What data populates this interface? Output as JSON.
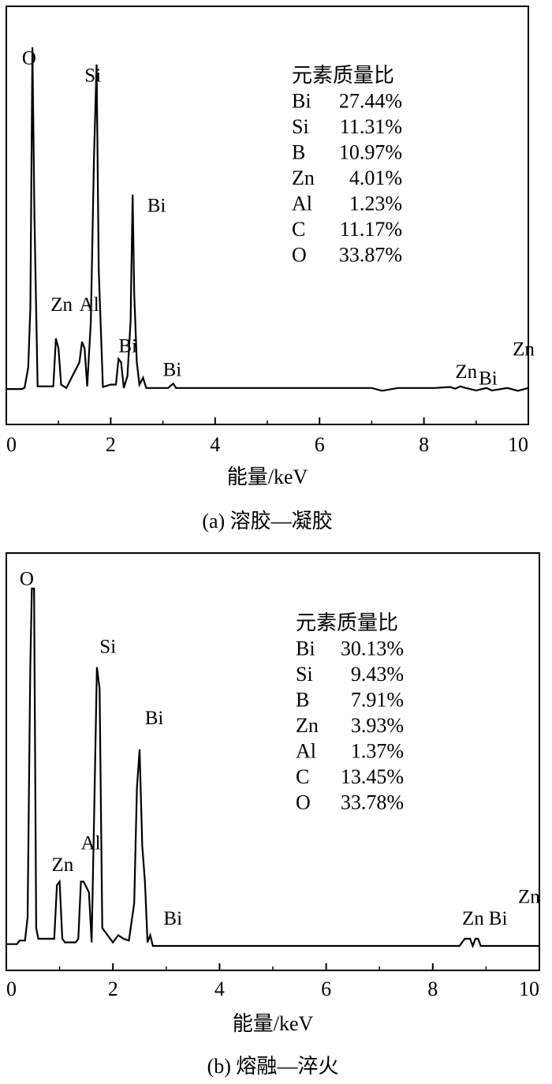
{
  "chart_data": [
    {
      "type": "line",
      "title": "",
      "caption": "(a)  溶胶—凝胶",
      "xlabel": "能量/keV",
      "ylabel": "",
      "xlim": [
        0,
        10
      ],
      "xticks": [
        "0",
        "2",
        "4",
        "6",
        "8",
        "10"
      ],
      "grid": false,
      "series": [
        {
          "x": [
            0,
            0.3,
            0.35,
            0.42,
            0.46,
            0.5,
            0.54,
            0.6,
            0.9,
            0.95,
            1.0,
            1.05,
            1.15,
            1.4,
            1.45,
            1.5,
            1.55,
            1.62,
            1.68,
            1.73,
            1.77,
            1.85,
            2.0,
            2.1,
            2.15,
            2.2,
            2.25,
            2.32,
            2.38,
            2.42,
            2.45,
            2.5,
            2.55,
            2.62,
            2.68,
            2.72,
            2.8,
            3.1,
            3.15,
            3.2,
            3.25,
            3.3,
            4.0,
            7.0,
            7.2,
            7.5,
            8.2,
            8.5,
            8.6,
            8.7,
            8.8,
            9.0,
            9.2,
            9.3,
            9.6,
            9.8,
            10.0
          ],
          "y": [
            0.2,
            0.2,
            0.6,
            6.5,
            24,
            100,
            50,
            1,
            1,
            15,
            12,
            1.5,
            0.5,
            8,
            14,
            12,
            1,
            20,
            68,
            95,
            35,
            0.8,
            1.5,
            1.5,
            9,
            8,
            0.5,
            4,
            20,
            57,
            28,
            8,
            1.5,
            3.5,
            0.5,
            0.5,
            0.5,
            0.5,
            1.2,
            1.8,
            0.5,
            0.5,
            0.5,
            0.5,
            -0.3,
            0.5,
            0.5,
            0.8,
            0.3,
            1.0,
            0.5,
            -0.2,
            0.5,
            -0.2,
            0.5,
            -0.3,
            0.5
          ]
        }
      ],
      "peak_labels": [
        {
          "text": "O",
          "x": 0.3,
          "y": 95
        },
        {
          "text": "Si",
          "x": 1.5,
          "y": 90
        },
        {
          "text": "Bi",
          "x": 2.7,
          "y": 52
        },
        {
          "text": "Zn",
          "x": 0.85,
          "y": 23
        },
        {
          "text": "Al",
          "x": 1.4,
          "y": 23
        },
        {
          "text": "Bi",
          "x": 2.15,
          "y": 11
        },
        {
          "text": "Bi",
          "x": 3.0,
          "y": 4
        },
        {
          "text": "Zn",
          "x": 8.6,
          "y": 3.5
        },
        {
          "text": "Bi",
          "x": 9.05,
          "y": 1.5
        },
        {
          "text": "Zn",
          "x": 9.7,
          "y": 10
        }
      ],
      "composition": {
        "heading": "元素质量比",
        "rows": [
          {
            "element": "Bi",
            "value": "27.44%"
          },
          {
            "element": "Si",
            "value": "11.31%"
          },
          {
            "element": "B",
            "value": "10.97%"
          },
          {
            "element": "Zn",
            "value": "4.01%"
          },
          {
            "element": "Al",
            "value": "1.23%"
          },
          {
            "element": "C",
            "value": "11.17%"
          },
          {
            "element": "O",
            "value": "33.87%"
          }
        ]
      }
    },
    {
      "type": "line",
      "title": "",
      "caption": "(b)  熔融—淬火",
      "xlabel": "能量/keV",
      "ylabel": "",
      "xlim": [
        0,
        10
      ],
      "xticks": [
        "0",
        "2",
        "4",
        "6",
        "8",
        "10"
      ],
      "grid": false,
      "series": [
        {
          "x": [
            0,
            0.2,
            0.25,
            0.35,
            0.4,
            0.45,
            0.48,
            0.52,
            0.56,
            0.6,
            0.9,
            0.95,
            1.0,
            1.05,
            1.1,
            1.3,
            1.35,
            1.4,
            1.45,
            1.55,
            1.6,
            1.65,
            1.7,
            1.75,
            1.8,
            2.0,
            2.1,
            2.2,
            2.3,
            2.4,
            2.45,
            2.5,
            2.55,
            2.6,
            2.65,
            2.7,
            2.75,
            2.8,
            8.5,
            8.6,
            8.7,
            8.75,
            8.8,
            8.85,
            8.9,
            10.0
          ],
          "y": [
            0.5,
            0.5,
            1.5,
            1.5,
            8,
            78,
            100,
            100,
            5,
            2,
            2,
            17,
            18,
            2,
            1,
            1,
            2,
            18,
            18,
            15,
            1,
            38,
            78,
            72,
            5,
            1,
            3,
            2,
            1.5,
            12,
            44,
            55,
            28,
            18,
            1,
            3,
            0,
            0,
            0,
            2,
            2,
            0,
            2,
            2,
            0,
            0
          ]
        }
      ],
      "peak_labels": [
        {
          "text": "O",
          "x": 0.25,
          "y": 101
        },
        {
          "text": "Si",
          "x": 1.75,
          "y": 82
        },
        {
          "text": "Bi",
          "x": 2.6,
          "y": 62
        },
        {
          "text": "Zn",
          "x": 0.85,
          "y": 21
        },
        {
          "text": "Al",
          "x": 1.4,
          "y": 27
        },
        {
          "text": "Bi",
          "x": 2.95,
          "y": 6
        },
        {
          "text": "Zn",
          "x": 8.55,
          "y": 6
        },
        {
          "text": "Bi",
          "x": 9.05,
          "y": 6
        },
        {
          "text": "Zn",
          "x": 9.6,
          "y": 12
        }
      ],
      "composition": {
        "heading": "元素质量比",
        "rows": [
          {
            "element": "Bi",
            "value": "30.13%"
          },
          {
            "element": "Si",
            "value": "9.43%"
          },
          {
            "element": "B",
            "value": "7.91%"
          },
          {
            "element": "Zn",
            "value": "3.93%"
          },
          {
            "element": "Al",
            "value": "1.37%"
          },
          {
            "element": "C",
            "value": "13.45%"
          },
          {
            "element": "O",
            "value": "33.78%"
          }
        ]
      }
    }
  ]
}
